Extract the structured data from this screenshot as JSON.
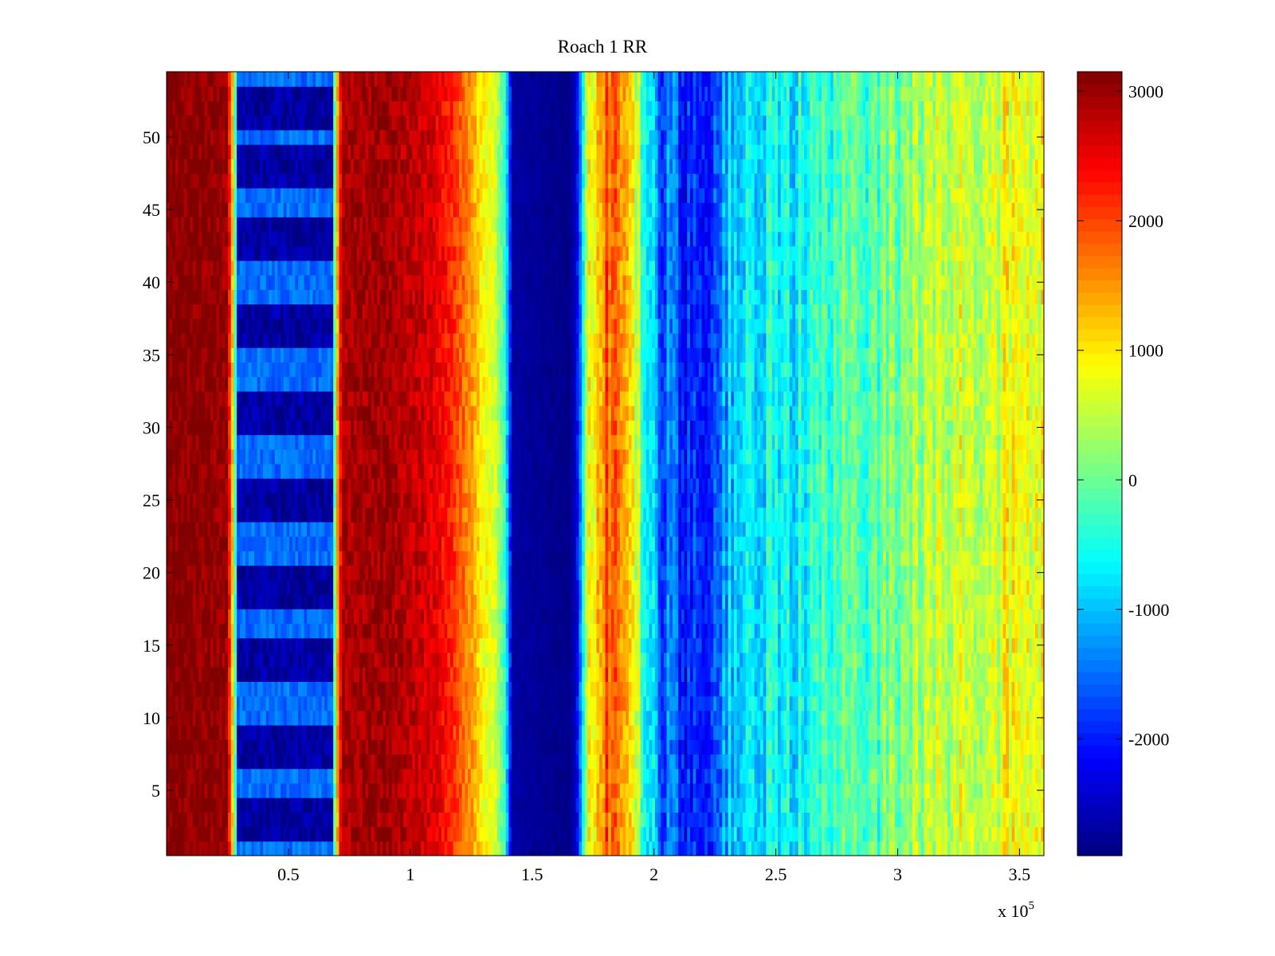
{
  "chart_data": {
    "type": "heatmap",
    "title": "Roach 1 RR",
    "xlabel": "",
    "ylabel": "",
    "x_multiplier_label": {
      "base": "x 10",
      "exponent": "5"
    },
    "x_range": [
      0,
      360000
    ],
    "y_range": [
      0.5,
      54.5
    ],
    "rows": 54,
    "xticks": [
      {
        "value": 0.5,
        "label": "0.5"
      },
      {
        "value": 1,
        "label": "1"
      },
      {
        "value": 1.5,
        "label": "1.5"
      },
      {
        "value": 2,
        "label": "2"
      },
      {
        "value": 2.5,
        "label": "2.5"
      },
      {
        "value": 3,
        "label": "3"
      },
      {
        "value": 3.5,
        "label": "3.5"
      }
    ],
    "yticks": [
      {
        "value": 5,
        "label": "5"
      },
      {
        "value": 10,
        "label": "10"
      },
      {
        "value": 15,
        "label": "15"
      },
      {
        "value": 20,
        "label": "20"
      },
      {
        "value": 25,
        "label": "25"
      },
      {
        "value": 30,
        "label": "30"
      },
      {
        "value": 35,
        "label": "35"
      },
      {
        "value": 40,
        "label": "40"
      },
      {
        "value": 45,
        "label": "45"
      },
      {
        "value": 50,
        "label": "50"
      }
    ],
    "colorbar": {
      "colormap": "jet",
      "range": [
        -2900,
        3150
      ],
      "ticks": [
        {
          "value": 3000,
          "label": "3000"
        },
        {
          "value": 2000,
          "label": "2000"
        },
        {
          "value": 1000,
          "label": "1000"
        },
        {
          "value": 0,
          "label": "0"
        },
        {
          "value": -1000,
          "label": "-1000"
        },
        {
          "value": -2000,
          "label": "-2000"
        }
      ]
    },
    "column_profile": [
      {
        "x": 0,
        "value": 3150
      },
      {
        "x": 20000,
        "value": 3100
      },
      {
        "x": 25000,
        "value": 3000
      },
      {
        "x": 27000,
        "value": 1200
      },
      {
        "x": 29000,
        "value": -1200
      },
      {
        "x": 32000,
        "value": -2300
      },
      {
        "x": 50000,
        "value": -2400
      },
      {
        "x": 66000,
        "value": -2200
      },
      {
        "x": 68000,
        "value": -1300
      },
      {
        "x": 70000,
        "value": 1200
      },
      {
        "x": 72000,
        "value": 2900
      },
      {
        "x": 90000,
        "value": 3000
      },
      {
        "x": 100000,
        "value": 2800
      },
      {
        "x": 110000,
        "value": 2600
      },
      {
        "x": 118000,
        "value": 2100
      },
      {
        "x": 125000,
        "value": 1500
      },
      {
        "x": 130000,
        "value": 900
      },
      {
        "x": 135000,
        "value": 600
      },
      {
        "x": 139000,
        "value": -400
      },
      {
        "x": 142000,
        "value": -2700
      },
      {
        "x": 165000,
        "value": -2850
      },
      {
        "x": 168000,
        "value": -2500
      },
      {
        "x": 171000,
        "value": -600
      },
      {
        "x": 174000,
        "value": 1000
      },
      {
        "x": 180000,
        "value": 1900
      },
      {
        "x": 186000,
        "value": 1700
      },
      {
        "x": 192000,
        "value": 700
      },
      {
        "x": 197000,
        "value": -500
      },
      {
        "x": 203000,
        "value": -1500
      },
      {
        "x": 215000,
        "value": -1900
      },
      {
        "x": 225000,
        "value": -1700
      },
      {
        "x": 232000,
        "value": -900
      },
      {
        "x": 245000,
        "value": -800
      },
      {
        "x": 260000,
        "value": -500
      },
      {
        "x": 280000,
        "value": -200
      },
      {
        "x": 300000,
        "value": 100
      },
      {
        "x": 320000,
        "value": 500
      },
      {
        "x": 340000,
        "value": 700
      },
      {
        "x": 360000,
        "value": 800
      }
    ],
    "row_modulation": {
      "x_range": [
        29000,
        68000
      ],
      "strong_rows": [
        2,
        3,
        4,
        7,
        8,
        9,
        13,
        14,
        15,
        18,
        19,
        20,
        24,
        25,
        26,
        30,
        31,
        32,
        36,
        37,
        38,
        42,
        43,
        44,
        47,
        48,
        49,
        51,
        52,
        53
      ],
      "strong_value": -2700,
      "weak_value": -1500
    }
  }
}
